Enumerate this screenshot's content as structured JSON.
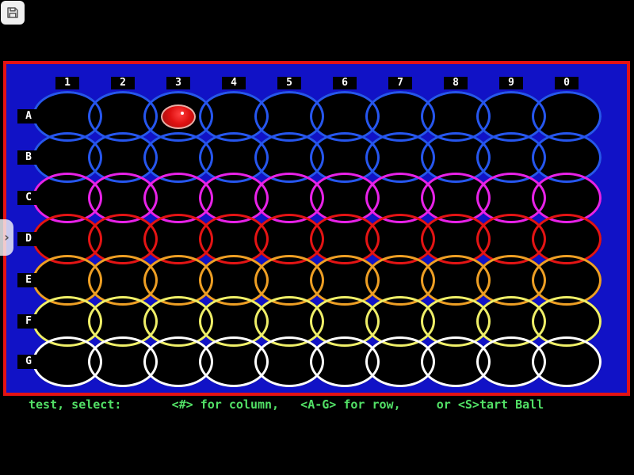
{
  "window": {
    "background": "#000000"
  },
  "toolbar": {
    "save_button": {
      "icon": "floppy-disk"
    }
  },
  "sidebar_toggle": {
    "glyph": "›"
  },
  "board": {
    "background": "#1112C6",
    "border_color": "#E41313",
    "label_bg": "#000000",
    "label_color": "#FFFFFF",
    "columns": [
      "1",
      "2",
      "3",
      "4",
      "5",
      "6",
      "7",
      "8",
      "9",
      "0"
    ],
    "rows": [
      {
        "label": "A",
        "color": "#2656EE"
      },
      {
        "label": "B",
        "color": "#2656EE"
      },
      {
        "label": "C",
        "color": "#E822E8"
      },
      {
        "label": "D",
        "color": "#E41414"
      },
      {
        "label": "E",
        "color": "#EE9F24"
      },
      {
        "label": "F",
        "color": "#EFEF68"
      },
      {
        "label": "G",
        "color": "#FFFFFF"
      }
    ],
    "ball": {
      "row": "A",
      "column": "3",
      "fill": "#DF1111",
      "rim": "#E7AEA6",
      "highlight": "#FFFFFF"
    }
  },
  "status_bar": {
    "text": "test, select:       <#> for column,   <A-G> for row,     or <S>tart Ball",
    "color": "#52E066"
  }
}
